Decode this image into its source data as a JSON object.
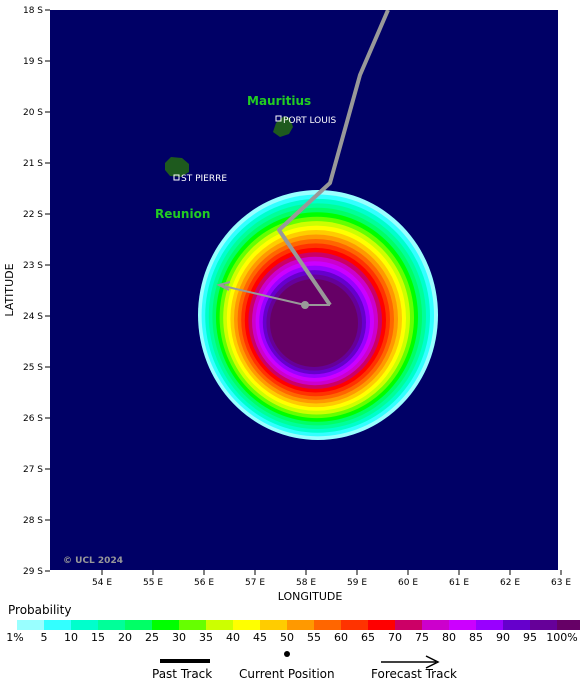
{
  "map": {
    "x_axis_title": "LONGITUDE",
    "y_axis_title": "LATITUDE",
    "lon_ticks": [
      "54 E",
      "55 E",
      "56 E",
      "57 E",
      "58 E",
      "59 E",
      "60 E",
      "61 E",
      "62 E",
      "63 E"
    ],
    "lat_ticks": [
      "18 S",
      "19 S",
      "20 S",
      "21 S",
      "22 S",
      "23 S",
      "24 S",
      "25 S",
      "26 S",
      "27 S",
      "28 S",
      "29 S"
    ],
    "copyright": "© UCL 2024",
    "ocean_color": "#000066",
    "land_color": "#1e5a1e",
    "island_label_color": "#22cc22",
    "islands": [
      {
        "name": "Mauritius",
        "city": "PORT LOUIS"
      },
      {
        "name": "Reunion",
        "city": "ST PIERRE"
      }
    ],
    "past_track_color": "#999999"
  },
  "legend": {
    "title": "Probability",
    "colors": [
      "#99ffff",
      "#33ffff",
      "#00ffcc",
      "#00ff99",
      "#00ff66",
      "#00ff00",
      "#66ff00",
      "#ccff00",
      "#ffff00",
      "#ffcc00",
      "#ff9900",
      "#ff6600",
      "#ff3300",
      "#ff0000",
      "#cc0066",
      "#cc00cc",
      "#cc00ff",
      "#9900ff",
      "#6600cc",
      "#660099",
      "#660066"
    ],
    "tick_labels": [
      "1%",
      "5",
      "10",
      "15",
      "20",
      "25",
      "30",
      "35",
      "40",
      "45",
      "50",
      "55",
      "60",
      "65",
      "70",
      "75",
      "80",
      "85",
      "90",
      "95",
      "100%"
    ],
    "key_items": [
      {
        "icon": "past-track-line",
        "label": "Past Track"
      },
      {
        "icon": "current-position-dot",
        "label": "Current Position"
      },
      {
        "icon": "forecast-track-arrow",
        "label": "Forecast Track"
      }
    ]
  }
}
